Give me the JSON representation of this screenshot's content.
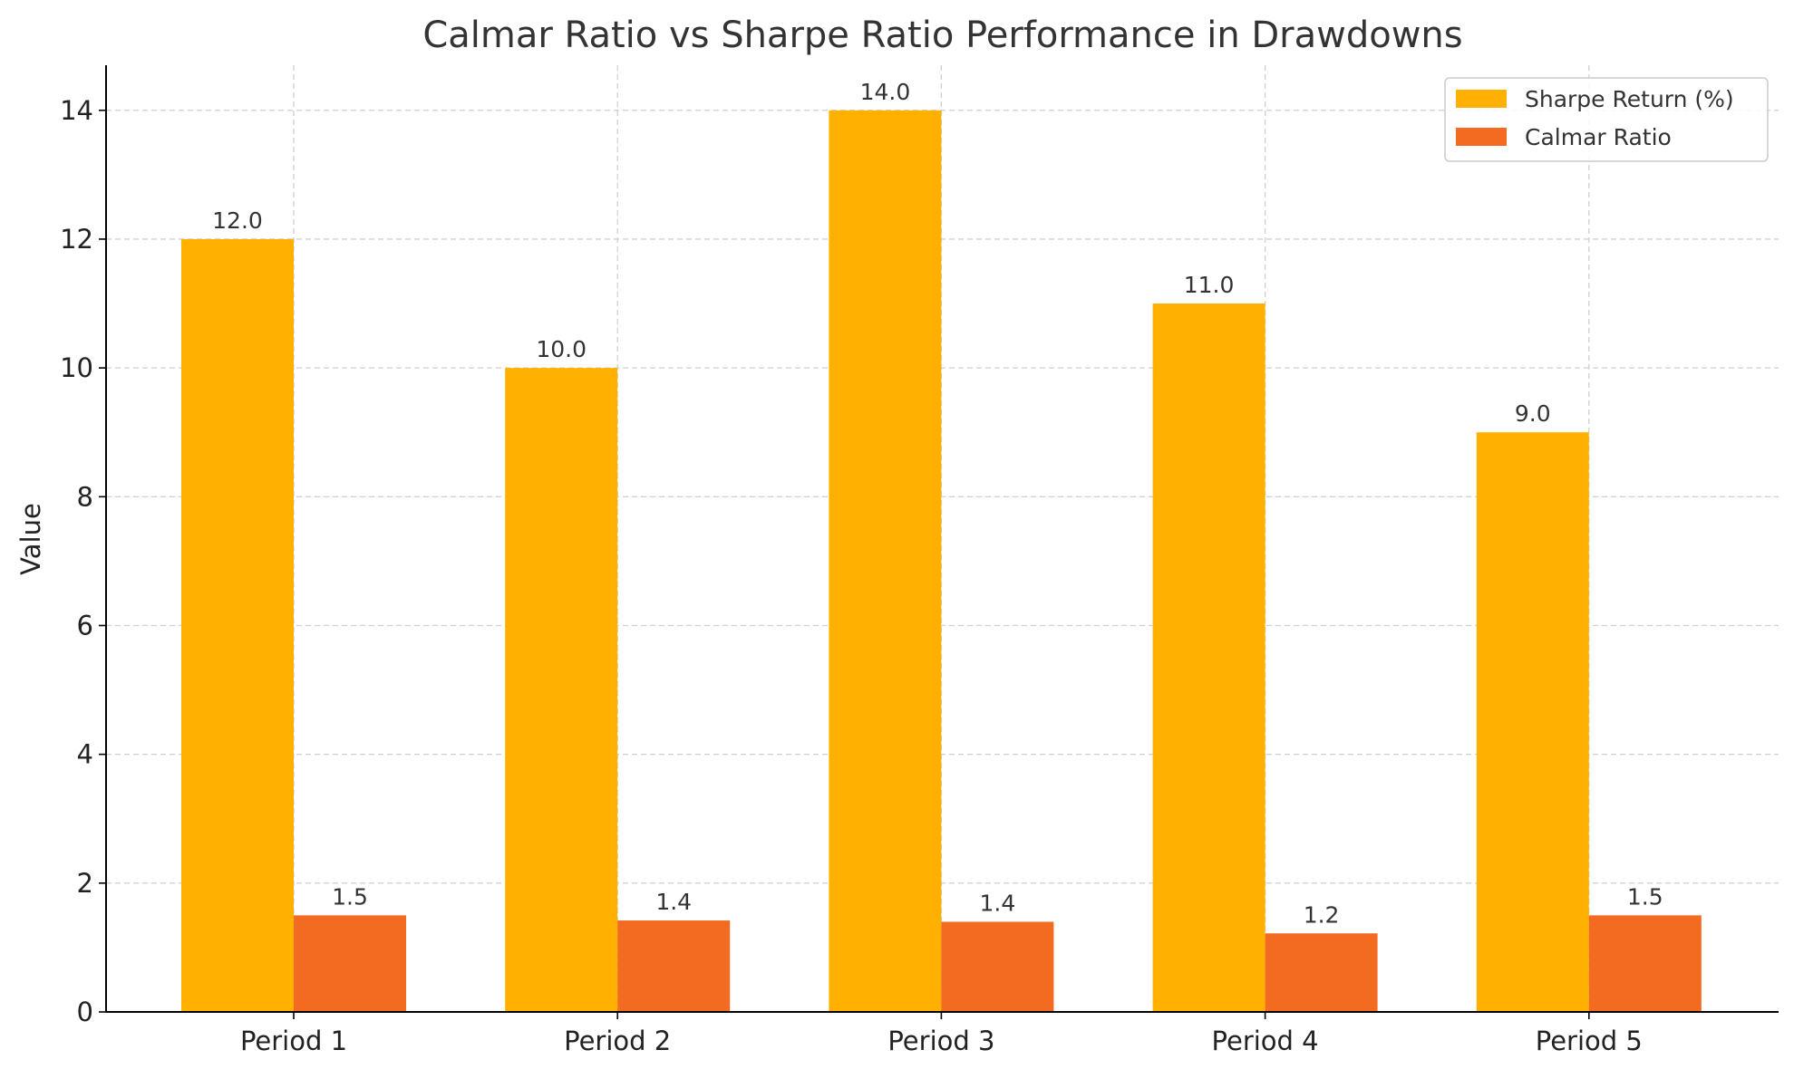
{
  "chart_data": {
    "type": "bar",
    "title": "Calmar Ratio vs Sharpe Ratio Performance in Drawdowns",
    "xlabel": "",
    "ylabel": "Value",
    "categories": [
      "Period 1",
      "Period 2",
      "Period 3",
      "Period 4",
      "Period 5"
    ],
    "series": [
      {
        "name": "Sharpe Return (%)",
        "color": "#FFB000",
        "values": [
          12.0,
          10.0,
          14.0,
          11.0,
          9.0
        ],
        "labels": [
          "12.0",
          "10.0",
          "14.0",
          "11.0",
          "9.0"
        ]
      },
      {
        "name": "Calmar Ratio",
        "color": "#F36B21",
        "values": [
          1.5,
          1.42,
          1.4,
          1.22,
          1.5
        ],
        "labels": [
          "1.5",
          "1.4",
          "1.4",
          "1.2",
          "1.5"
        ]
      }
    ],
    "ylim": [
      0,
      14.7
    ],
    "yticks": [
      0,
      2,
      4,
      6,
      8,
      10,
      12,
      14
    ],
    "grid": true,
    "legend": "top-right"
  }
}
